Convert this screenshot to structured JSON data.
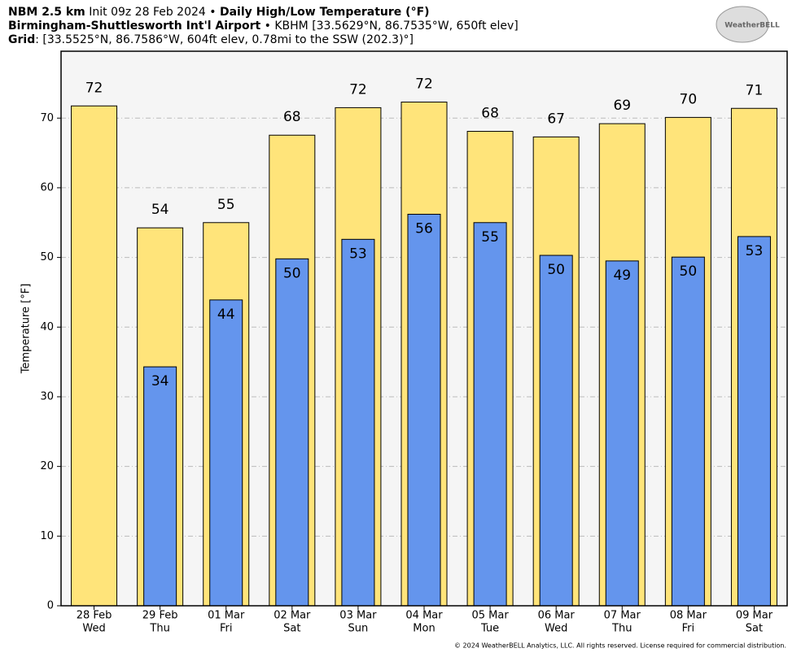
{
  "chart_data": {
    "type": "bar",
    "title": [
      [
        {
          "text": "NBM 2.5 km",
          "bold": true
        },
        {
          "text": " Init 09z 28 Feb 2024 • ",
          "bold": false
        },
        {
          "text": "Daily High/Low Temperature (°F)",
          "bold": true
        }
      ],
      [
        {
          "text": "Birmingham-Shuttlesworth Int'l Airport",
          "bold": true
        },
        {
          "text": " • KBHM [33.5629°N, 86.7535°W, 650ft elev]",
          "bold": false
        }
      ],
      [
        {
          "text": "Grid",
          "bold": true
        },
        {
          "text": ": [33.5525°N, 86.7586°W, 604ft elev, 0.78mi to the SSW (202.3)°]",
          "bold": false
        }
      ]
    ],
    "logo": "WeatherBELL",
    "ylabel": "Temperature [°F]",
    "footer": "© 2024 WeatherBELL Analytics, LLC. All rights reserved. License required for commercial distribution.",
    "categories": [
      [
        "28 Feb",
        "Wed"
      ],
      [
        "29 Feb",
        "Thu"
      ],
      [
        "01 Mar",
        "Fri"
      ],
      [
        "02 Mar",
        "Sat"
      ],
      [
        "03 Mar",
        "Sun"
      ],
      [
        "04 Mar",
        "Mon"
      ],
      [
        "05 Mar",
        "Tue"
      ],
      [
        "06 Mar",
        "Wed"
      ],
      [
        "07 Mar",
        "Thu"
      ],
      [
        "08 Mar",
        "Fri"
      ],
      [
        "09 Mar",
        "Sat"
      ]
    ],
    "series": [
      {
        "color": "#ffe47a",
        "values": [
          71.75,
          54.25,
          55,
          67.55,
          71.5,
          72.3,
          68.1,
          67.3,
          69.2,
          70.1,
          71.4
        ],
        "value_labels": [
          "72",
          "54",
          "55",
          "68",
          "72",
          "72",
          "68",
          "67",
          "69",
          "70",
          "71"
        ]
      },
      {
        "color": "#6495ed",
        "values": [
          null,
          34.3,
          43.9,
          49.8,
          52.6,
          56.2,
          55.0,
          50.3,
          49.5,
          50.05,
          53.0
        ],
        "value_labels": [
          null,
          "34",
          "44",
          "50",
          "53",
          "56",
          "55",
          "50",
          "49",
          "50",
          "53"
        ]
      }
    ],
    "ylim": [
      0,
      79.6
    ],
    "yticks": [
      0,
      10,
      20,
      30,
      40,
      50,
      60,
      70
    ],
    "grid": true
  }
}
